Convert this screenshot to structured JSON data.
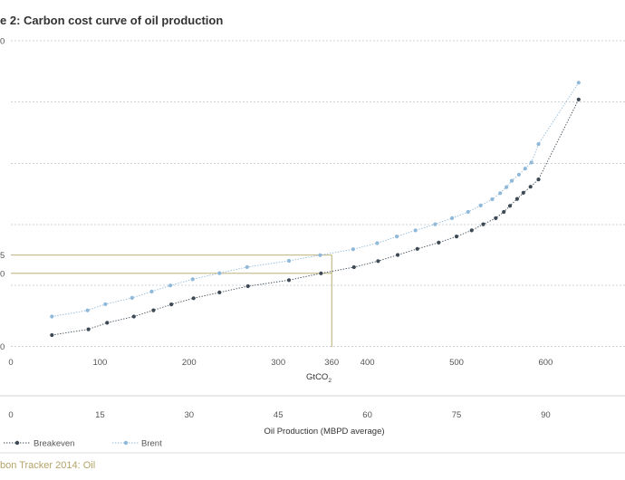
{
  "colors": {
    "breakeven": "#3d4a56",
    "brent": "#8fb8d9",
    "grid": "#bfc3c7",
    "highlight": "#b3a468",
    "source": "#b3a468"
  },
  "chart_data": {
    "type": "scatter",
    "title": "e 2: Carbon cost curve of oil production",
    "y_tick_labels": [
      "0",
      "",
      "",
      "",
      "",
      "",
      "0"
    ],
    "highlight_tick_labels": [
      "5",
      "0"
    ],
    "x_axis": {
      "label": "GtCO",
      "label_subscript": "2",
      "range": [
        0,
        690
      ],
      "ticks": [
        0,
        100,
        200,
        300,
        400,
        500,
        600
      ],
      "highlight_tick": 360
    },
    "production_axis": {
      "label": "Oil Production (MBPD average)",
      "ticks": [
        "0",
        "15",
        "30",
        "45",
        "60",
        "75",
        "90"
      ]
    },
    "highlight": {
      "x": 360,
      "breakeven_y": 60.2,
      "brent_y": 75.2
    },
    "series": [
      {
        "name": "Breakeven",
        "x": [
          46,
          87,
          108,
          138,
          160,
          180,
          205,
          234,
          266,
          312,
          348,
          385,
          412,
          434,
          456,
          480,
          500,
          517,
          530,
          544,
          553,
          560,
          568,
          575,
          583,
          592,
          637
        ],
        "y": [
          9.3,
          14.1,
          19.5,
          24.6,
          29.8,
          34.6,
          39.7,
          44.5,
          49.6,
          54.6,
          60.2,
          65.3,
          70.3,
          75.4,
          80.4,
          85.5,
          90.6,
          95.6,
          100.7,
          105.7,
          110.8,
          115.8,
          121.6,
          126.6,
          131.6,
          137.6,
          203.4
        ]
      },
      {
        "name": "Brent",
        "x": [
          46,
          86,
          106,
          136,
          158,
          179,
          204,
          234,
          265,
          312,
          347,
          384,
          411,
          433,
          454,
          476,
          495,
          513,
          527,
          540,
          549,
          556,
          562,
          570,
          577,
          584,
          592,
          637
        ],
        "y": [
          24.6,
          29.7,
          34.8,
          40.0,
          45.2,
          50.2,
          55.3,
          60.4,
          65.4,
          70.5,
          75.2,
          80.1,
          85.1,
          90.6,
          95.6,
          100.7,
          105.7,
          110.8,
          116.1,
          121.3,
          126.3,
          131.3,
          136.5,
          141.6,
          146.6,
          151.6,
          166.7,
          217.3
        ]
      }
    ]
  },
  "source": "bon Tracker 2014: Oil"
}
